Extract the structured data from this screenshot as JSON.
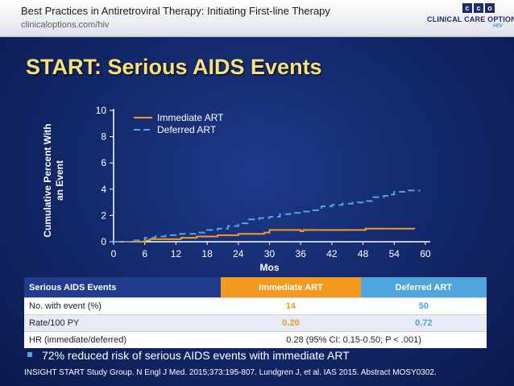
{
  "header": {
    "title": "Best Practices in Antiretroviral Therapy: Initiating First-line Therapy",
    "url": "clinicaloptions.com/hiv",
    "logo_boxes": [
      "c",
      "c",
      "o"
    ],
    "logo_name": "CLINICAL CARE OPTIONS",
    "logo_sub": "HIV"
  },
  "slide_title": "START: Serious AIDS Events",
  "colors": {
    "immediate": "#f39a1f",
    "deferred": "#4ea6dc",
    "title": "#f7e27a"
  },
  "chart_data": {
    "type": "line",
    "ylabel": "Cumulative Percent With an Event",
    "xlabel": "Mos",
    "xlim": [
      0,
      60
    ],
    "ylim": [
      0,
      10
    ],
    "xticks": [
      0,
      6,
      12,
      18,
      24,
      30,
      36,
      42,
      48,
      54,
      60
    ],
    "yticks": [
      0,
      2,
      4,
      6,
      8,
      10
    ],
    "grid": false,
    "legend_position": "top-left",
    "series": [
      {
        "name": "Immediate ART",
        "style": "solid",
        "points": [
          [
            0,
            0
          ],
          [
            4,
            0
          ],
          [
            6,
            0.1
          ],
          [
            7,
            0.2
          ],
          [
            8,
            0.2
          ],
          [
            12,
            0.2
          ],
          [
            13,
            0.3
          ],
          [
            16,
            0.4
          ],
          [
            20,
            0.5
          ],
          [
            24,
            0.6
          ],
          [
            27,
            0.6
          ],
          [
            29,
            0.7
          ],
          [
            30,
            0.9
          ],
          [
            36,
            0.8
          ],
          [
            36.5,
            0.9
          ],
          [
            48,
            0.9
          ],
          [
            48.5,
            1.0
          ],
          [
            58,
            1.0
          ]
        ]
      },
      {
        "name": "Deferred ART",
        "style": "dashed",
        "points": [
          [
            0,
            0
          ],
          [
            4,
            0.1
          ],
          [
            6,
            0.3
          ],
          [
            8,
            0.4
          ],
          [
            10,
            0.5
          ],
          [
            12,
            0.6
          ],
          [
            14,
            0.6
          ],
          [
            16,
            0.7
          ],
          [
            18,
            0.9
          ],
          [
            20,
            1.0
          ],
          [
            22,
            1.2
          ],
          [
            24,
            1.4
          ],
          [
            26,
            1.7
          ],
          [
            28,
            1.8
          ],
          [
            30,
            1.9
          ],
          [
            32,
            2.1
          ],
          [
            34,
            2.2
          ],
          [
            36,
            2.3
          ],
          [
            38,
            2.4
          ],
          [
            40,
            2.7
          ],
          [
            42,
            2.8
          ],
          [
            44,
            2.9
          ],
          [
            46,
            3.0
          ],
          [
            48,
            3.1
          ],
          [
            50,
            3.4
          ],
          [
            52,
            3.5
          ],
          [
            53,
            3.6
          ],
          [
            54,
            3.8
          ],
          [
            56,
            3.9
          ],
          [
            59,
            3.9
          ]
        ]
      }
    ]
  },
  "table": {
    "headers": [
      "Serious AIDS Events",
      "Immediate ART",
      "Deferred ART"
    ],
    "rows": [
      {
        "label": "No. with event (%)",
        "immediate": "14",
        "deferred": "50"
      },
      {
        "label": "Rate/100 PY",
        "immediate": "0.20",
        "deferred": "0.72"
      }
    ],
    "hr_label": "HR (immediate/deferred)",
    "hr_value": "0.28 (95% CI: 0.15-0.50; P < .001)"
  },
  "bullet": "72% reduced risk of serious AIDS events with immediate ART",
  "footer": "INSIGHT START Study Group. N Engl J Med. 2015;373:195-807. Lundgren J, et al. IAS 2015. Abstract MOSY0302."
}
